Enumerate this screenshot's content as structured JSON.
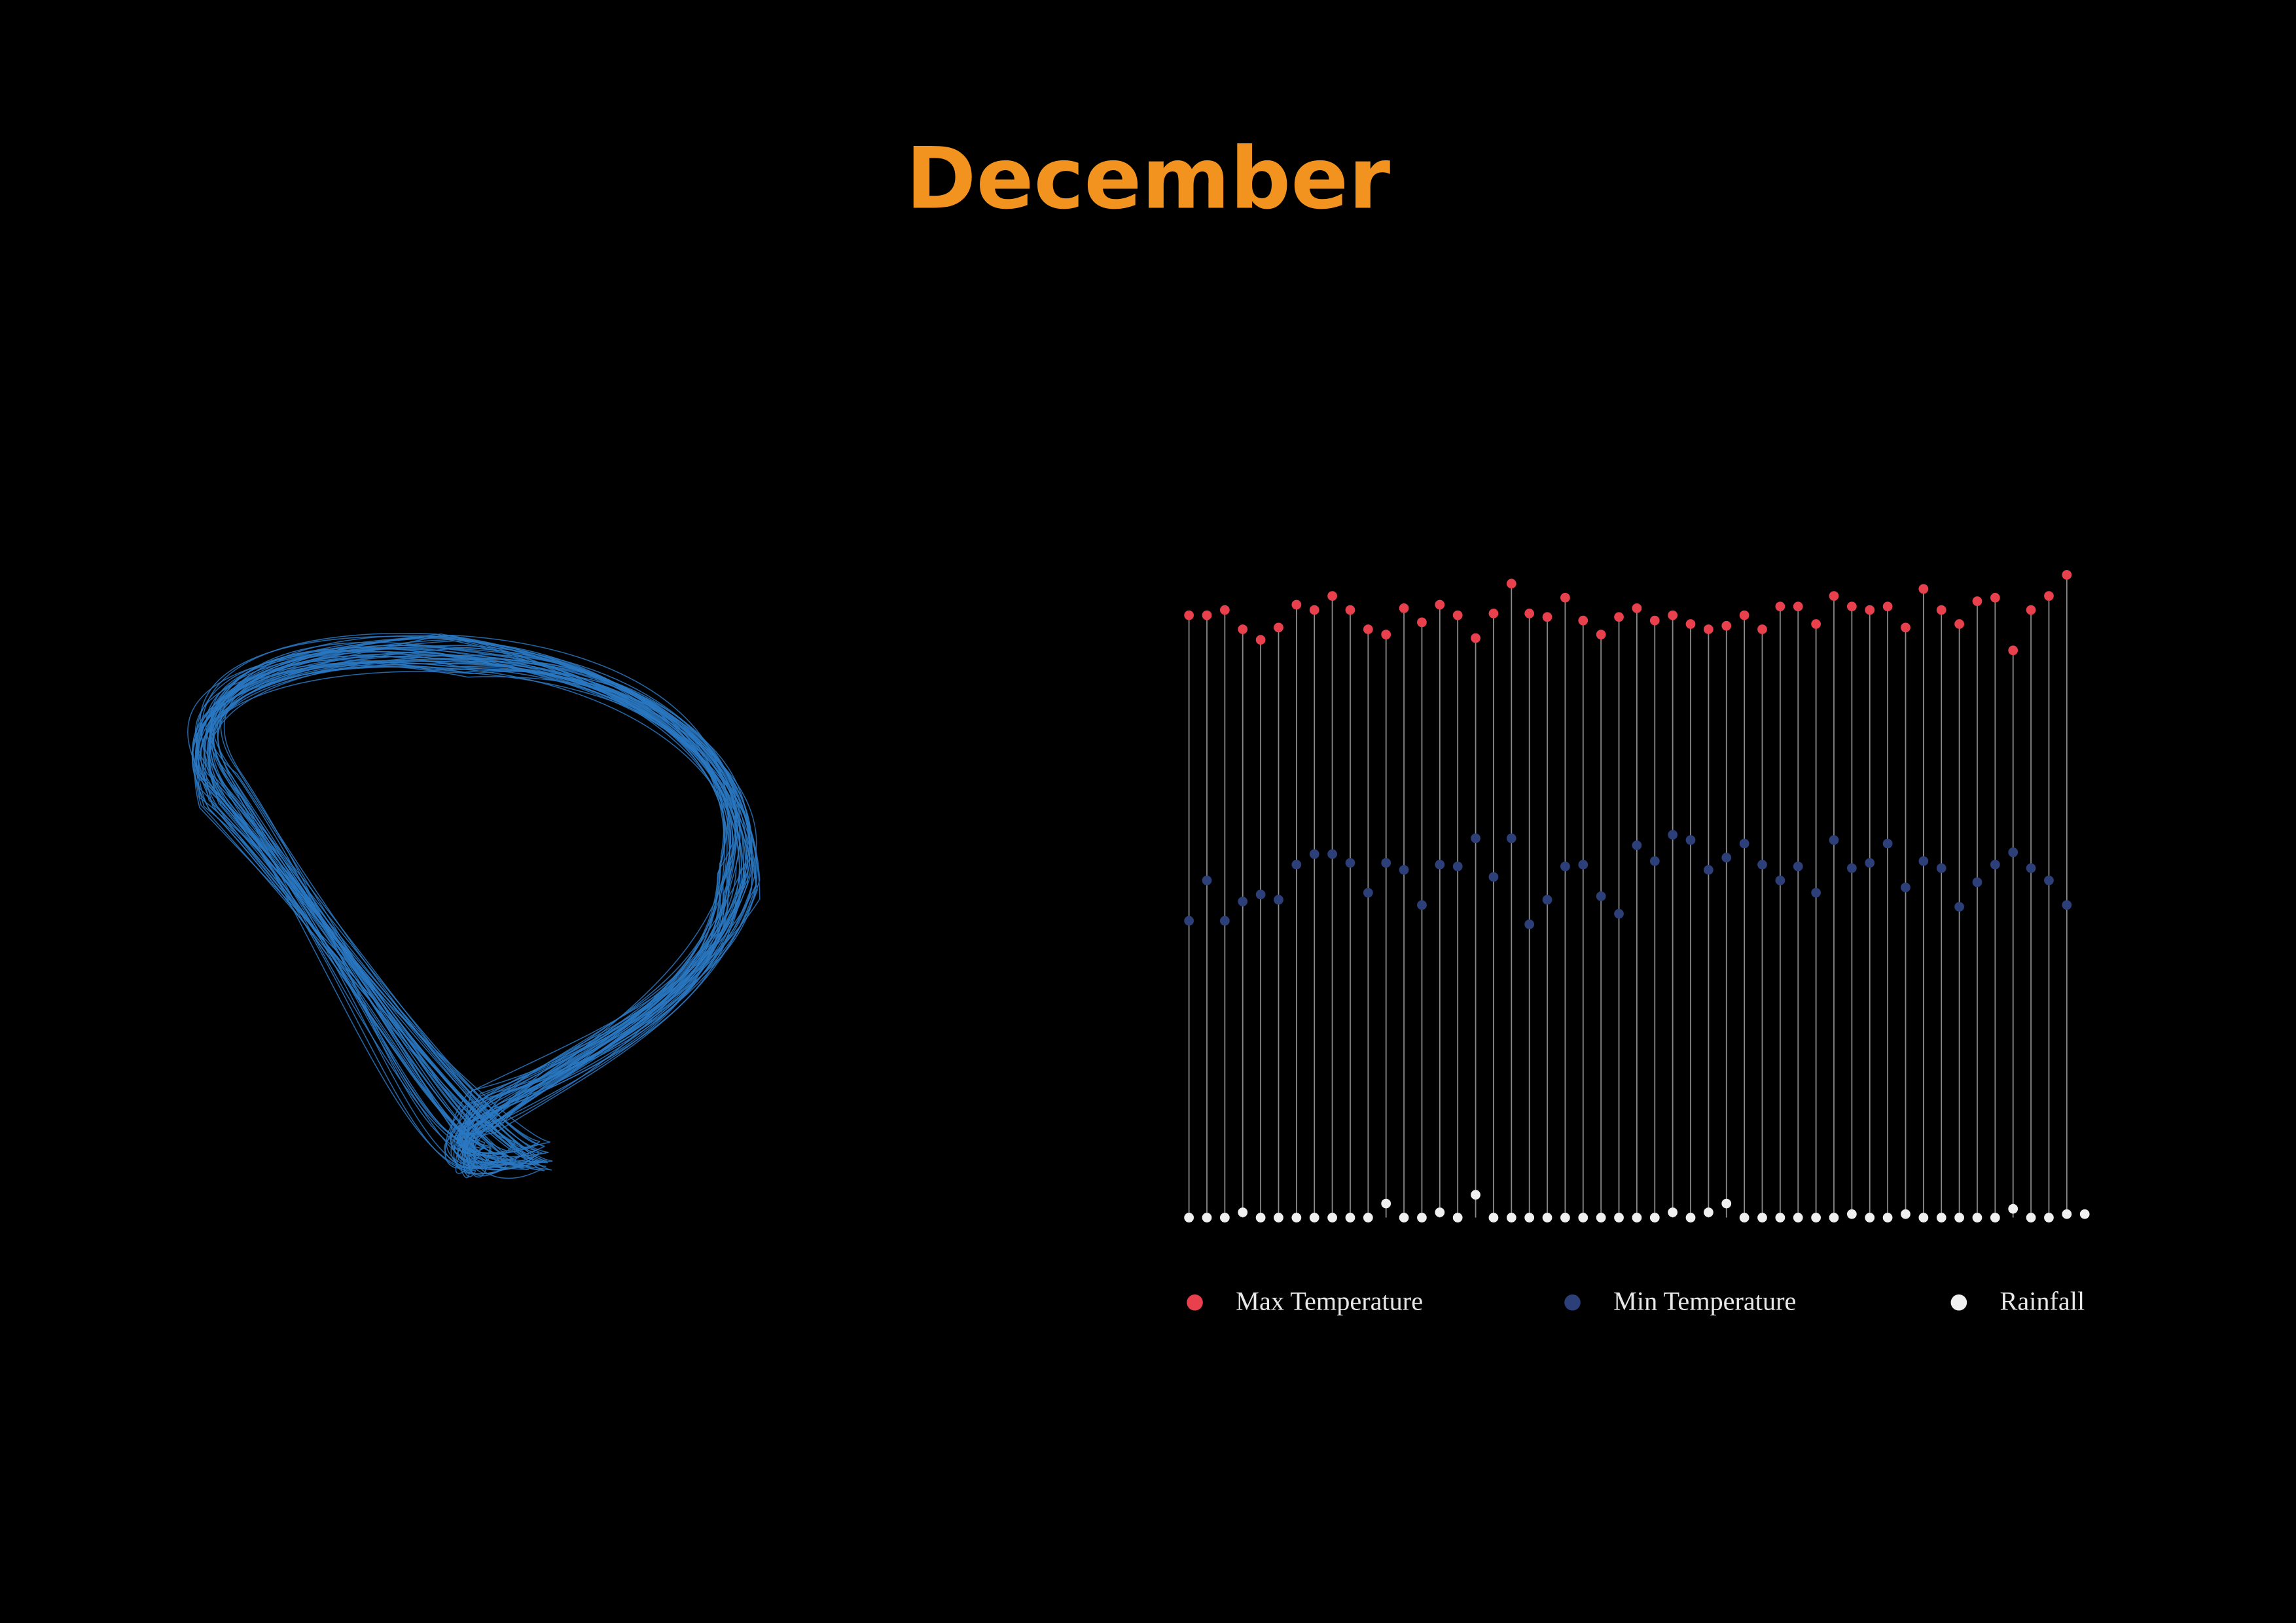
{
  "chart_data": {
    "type": "lollipop",
    "title": "December",
    "ylim": [
      0,
      40
    ],
    "series": [
      {
        "name": "Max Temperature",
        "color": "#e8404c",
        "values": [
          34.3,
          34.3,
          34.6,
          33.5,
          32.9,
          33.6,
          34.9,
          34.6,
          35.4,
          34.6,
          33.5,
          33.2,
          34.7,
          33.9,
          34.9,
          34.3,
          33.0,
          34.4,
          36.1,
          34.4,
          34.2,
          35.3,
          34.0,
          33.2,
          34.2,
          34.7,
          34.0,
          34.3,
          33.8,
          33.5,
          33.7,
          34.3,
          33.5,
          34.8,
          34.8,
          33.8,
          35.4,
          34.8,
          34.6,
          34.8,
          33.6,
          35.8,
          34.6,
          33.8,
          35.1,
          35.3,
          32.3,
          34.6,
          35.4,
          36.6,
          null
        ]
      },
      {
        "name": "Min Temperature",
        "color": "#2c3f78",
        "values": [
          16.9,
          19.2,
          16.9,
          18.0,
          18.4,
          18.1,
          20.1,
          20.7,
          20.7,
          20.2,
          18.5,
          20.2,
          19.8,
          17.8,
          20.1,
          20.0,
          21.6,
          19.4,
          21.6,
          16.7,
          18.1,
          20.0,
          20.1,
          18.3,
          17.3,
          21.2,
          20.3,
          21.8,
          21.5,
          19.8,
          20.5,
          21.3,
          20.1,
          19.2,
          20.0,
          18.5,
          21.5,
          19.9,
          20.2,
          21.3,
          18.8,
          20.3,
          19.9,
          17.7,
          19.1,
          20.1,
          20.8,
          19.9,
          19.2,
          17.8,
          null
        ]
      },
      {
        "name": "Rainfall",
        "color": "#f0f0f0",
        "values": [
          0,
          0,
          0,
          0.3,
          0,
          0,
          0,
          0,
          0,
          0,
          0,
          0.8,
          0,
          0,
          0.3,
          0,
          1.3,
          0,
          0,
          0,
          0,
          0,
          0,
          0,
          0,
          0,
          0,
          0.3,
          0,
          0.3,
          0.8,
          0,
          0,
          0,
          0,
          0,
          0,
          0.2,
          0,
          0,
          0.2,
          0,
          0,
          0,
          0,
          0,
          0.5,
          0,
          0,
          0.2,
          0.2
        ]
      }
    ]
  }
}
